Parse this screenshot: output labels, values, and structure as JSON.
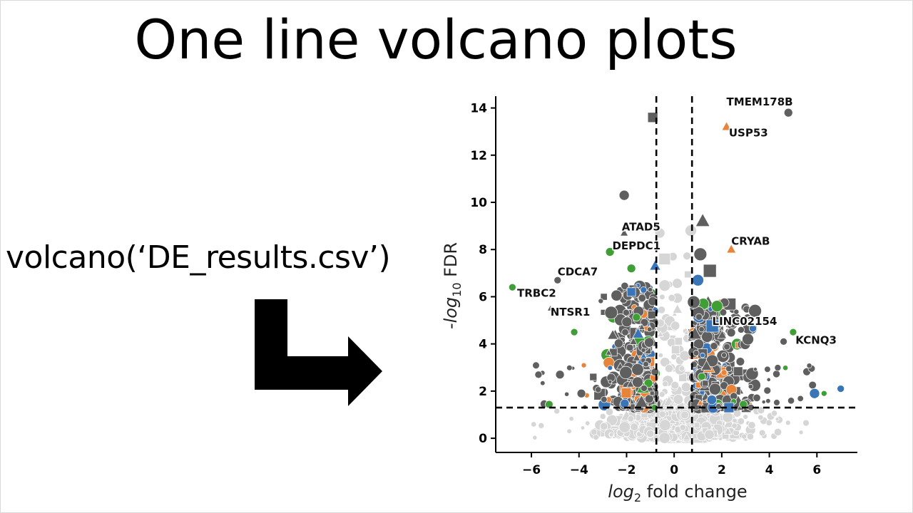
{
  "slide": {
    "title": "One line volcano plots",
    "code": "volcano(‘DE_results.csv’)"
  },
  "chart_data": {
    "type": "scatter",
    "xlabel_main": "log",
    "xlabel_sub": "2",
    "xlabel_rest": " fold change",
    "ylabel_prefix": "-log",
    "ylabel_sub": "10",
    "ylabel_rest": " FDR",
    "xlim": [
      -7.5,
      7.7
    ],
    "ylim": [
      -0.6,
      14.5
    ],
    "x_ticks": [
      -6,
      -4,
      -2,
      0,
      2,
      4,
      6
    ],
    "x_tick_labels": [
      "−6",
      "−4",
      "−2",
      "0",
      "2",
      "4",
      "6"
    ],
    "y_ticks": [
      0,
      2,
      4,
      6,
      8,
      10,
      12,
      14
    ],
    "y_tick_labels": [
      "0",
      "2",
      "4",
      "6",
      "8",
      "10",
      "12",
      "14"
    ],
    "thresholds": {
      "x": [
        -0.75,
        0.75
      ],
      "y": 1.3
    },
    "grid": false,
    "colors": {
      "dark": "#5f5f5f",
      "light": "#d6d6d6",
      "orange": "#e8833a",
      "green": "#3f9e35",
      "blue": "#3a75b8"
    },
    "labels": [
      {
        "text": "TMEM178B",
        "x": 2.2,
        "y": 14.1
      },
      {
        "text": "USP53",
        "x": 2.3,
        "y": 12.8
      },
      {
        "text": "ATAD5",
        "x": -2.2,
        "y": 8.8
      },
      {
        "text": "DEPDC1",
        "x": -2.6,
        "y": 8.0
      },
      {
        "text": "CRYAB",
        "x": 2.4,
        "y": 8.2
      },
      {
        "text": "CDCA7",
        "x": -4.9,
        "y": 6.9
      },
      {
        "text": "TRBC2",
        "x": -6.6,
        "y": 6.0
      },
      {
        "text": "NTSR1",
        "x": -5.2,
        "y": 5.2
      },
      {
        "text": "LINC02154",
        "x": 1.6,
        "y": 4.8
      },
      {
        "text": "KCNQ3",
        "x": 5.1,
        "y": 4.0
      }
    ],
    "labeled_points": [
      {
        "x": 4.8,
        "y": 13.8,
        "shape": "circle",
        "color": "dark",
        "size": 6
      },
      {
        "x": 2.2,
        "y": 13.2,
        "shape": "triangle",
        "color": "orange",
        "size": 6
      },
      {
        "x": -0.9,
        "y": 13.6,
        "shape": "square",
        "color": "dark",
        "size": 7
      },
      {
        "x": -2.1,
        "y": 8.7,
        "shape": "triangle",
        "color": "dark",
        "size": 5
      },
      {
        "x": -2.7,
        "y": 7.9,
        "shape": "circle",
        "color": "green",
        "size": 6
      },
      {
        "x": 2.4,
        "y": 8.0,
        "shape": "triangle",
        "color": "orange",
        "size": 6
      },
      {
        "x": -4.9,
        "y": 6.7,
        "shape": "circle",
        "color": "dark",
        "size": 5
      },
      {
        "x": -6.8,
        "y": 6.4,
        "shape": "circle",
        "color": "green",
        "size": 5
      },
      {
        "x": -5.2,
        "y": 5.5,
        "shape": "triangle",
        "color": "dark",
        "size": 4
      },
      {
        "x": -4.2,
        "y": 4.5,
        "shape": "circle",
        "color": "green",
        "size": 5
      },
      {
        "x": 5.0,
        "y": 4.5,
        "shape": "circle",
        "color": "green",
        "size": 5
      },
      {
        "x": 4.6,
        "y": 4.1,
        "shape": "circle",
        "color": "dark",
        "size": 5
      },
      {
        "x": 1.2,
        "y": 9.2,
        "shape": "triangle",
        "color": "dark",
        "size": 9
      },
      {
        "x": -2.1,
        "y": 10.3,
        "shape": "circle",
        "color": "dark",
        "size": 7
      },
      {
        "x": 0.7,
        "y": 8.8,
        "shape": "circle",
        "color": "light",
        "size": 8
      },
      {
        "x": -0.6,
        "y": 8.7,
        "shape": "circle",
        "color": "light",
        "size": 7
      },
      {
        "x": 1.1,
        "y": 7.8,
        "shape": "circle",
        "color": "dark",
        "size": 9
      },
      {
        "x": -0.4,
        "y": 7.6,
        "shape": "square",
        "color": "light",
        "size": 8
      },
      {
        "x": 1.5,
        "y": 7.1,
        "shape": "square",
        "color": "dark",
        "size": 9
      },
      {
        "x": -0.8,
        "y": 7.3,
        "shape": "triangle",
        "color": "blue",
        "size": 7
      },
      {
        "x": 1.0,
        "y": 6.7,
        "shape": "circle",
        "color": "blue",
        "size": 8
      },
      {
        "x": -1.8,
        "y": 7.2,
        "shape": "circle",
        "color": "green",
        "size": 6
      },
      {
        "x": -1.8,
        "y": 6.2,
        "shape": "square",
        "color": "blue",
        "size": 6
      },
      {
        "x": 3.4,
        "y": 5.4,
        "shape": "circle",
        "color": "dark",
        "size": 9
      },
      {
        "x": 1.8,
        "y": 5.6,
        "shape": "circle",
        "color": "green",
        "size": 8
      },
      {
        "x": 3.1,
        "y": 4.2,
        "shape": "circle",
        "color": "dark",
        "size": 8
      },
      {
        "x": 5.9,
        "y": 1.9,
        "shape": "circle",
        "color": "blue",
        "size": 7
      },
      {
        "x": 7.0,
        "y": 2.1,
        "shape": "circle",
        "color": "blue",
        "size": 5
      },
      {
        "x": 6.3,
        "y": 1.9,
        "shape": "circle",
        "color": "green",
        "size": 4
      },
      {
        "x": 2.3,
        "y": 1.3,
        "shape": "square",
        "color": "blue",
        "size": 7
      },
      {
        "x": -4.8,
        "y": 2.7,
        "shape": "circle",
        "color": "dark",
        "size": 6
      },
      {
        "x": -3.4,
        "y": 2.6,
        "shape": "square",
        "color": "dark",
        "size": 5
      },
      {
        "x": -3.9,
        "y": 1.9,
        "shape": "circle",
        "color": "dark",
        "size": 6
      }
    ]
  }
}
